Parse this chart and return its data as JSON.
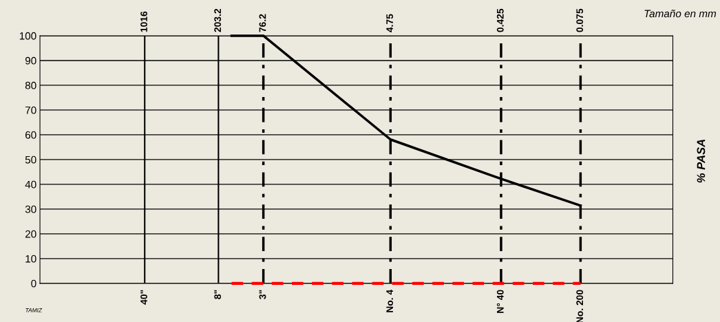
{
  "chart_data": {
    "type": "line",
    "xlabel": "Tamaño en mm",
    "ylabel": "% PASA",
    "annotations": [
      "TAMIZ",
      "40\"",
      "8\"",
      "3\"",
      "No. 4",
      "N° 40",
      "No. 200"
    ],
    "series": [
      {
        "color": "#000000",
        "x": [
          152.4,
          76.2,
          4.75,
          0.425,
          0.075
        ],
        "values": [
          100,
          100,
          58.1,
          42.2,
          31.4
        ],
        "line_style": "solid"
      },
      {
        "color": "#ff0000",
        "x": [
          152.4,
          0.075
        ],
        "values": [
          0,
          0
        ],
        "line_style": "dashed"
      }
    ],
    "xlim": [
      10000,
      0.01
    ],
    "log": "x",
    "xticks": [
      1016,
      203.2,
      76.2,
      4.75,
      0.425,
      0.075
    ],
    "ylim": [
      0,
      100
    ],
    "yticks": [
      0,
      10,
      20,
      30,
      40,
      50,
      60,
      70,
      80,
      90,
      100
    ],
    "ref_lines": [
      {
        "axis": "x",
        "value": 1016,
        "color": "#000000",
        "line_style": "solid"
      },
      {
        "axis": "x",
        "value": 203.2,
        "color": "#000000",
        "line_style": "solid"
      },
      {
        "axis": "x",
        "value": 76.2,
        "color": "#000000",
        "line_style": "dashed"
      },
      {
        "axis": "x",
        "value": 4.75,
        "color": "#000000",
        "line_style": "dashed"
      },
      {
        "axis": "x",
        "value": 0.425,
        "color": "#000000",
        "line_style": "dashed"
      },
      {
        "axis": "x",
        "value": 0.075,
        "color": "#000000",
        "line_style": "dashed"
      }
    ],
    "grid": "y",
    "legend": false,
    "marker": "none"
  }
}
